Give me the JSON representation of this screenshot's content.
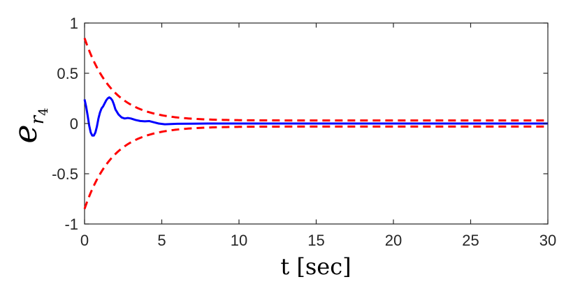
{
  "chart_data": {
    "type": "line",
    "xlabel": "t [sec]",
    "ylabel": {
      "base": "e",
      "sub": "r",
      "subsub": "4"
    },
    "xlim": [
      0,
      30
    ],
    "ylim": [
      -1,
      1
    ],
    "xticks": [
      0,
      5,
      10,
      15,
      20,
      25,
      30
    ],
    "xtick_labels": [
      "0",
      "5",
      "10",
      "15",
      "20",
      "25",
      "30"
    ],
    "yticks": [
      1,
      0.5,
      0,
      -0.5,
      -1
    ],
    "ytick_labels": [
      "1",
      "0.5",
      "0",
      "-0.5",
      "-1"
    ],
    "grid": false,
    "series": [
      {
        "style": "solid",
        "color": "#0000FF",
        "points": [
          [
            0,
            0.24
          ],
          [
            0.1,
            0.17
          ],
          [
            0.2,
            0.08
          ],
          [
            0.3,
            -0.02
          ],
          [
            0.4,
            -0.09
          ],
          [
            0.5,
            -0.12
          ],
          [
            0.6,
            -0.12
          ],
          [
            0.7,
            -0.09
          ],
          [
            0.8,
            -0.03
          ],
          [
            0.9,
            0.05
          ],
          [
            1.0,
            0.11
          ],
          [
            1.1,
            0.15
          ],
          [
            1.2,
            0.17
          ],
          [
            1.3,
            0.2
          ],
          [
            1.4,
            0.23
          ],
          [
            1.5,
            0.25
          ],
          [
            1.6,
            0.26
          ],
          [
            1.7,
            0.25
          ],
          [
            1.8,
            0.23
          ],
          [
            1.9,
            0.19
          ],
          [
            2.0,
            0.14
          ],
          [
            2.2,
            0.09
          ],
          [
            2.4,
            0.06
          ],
          [
            2.6,
            0.05
          ],
          [
            2.8,
            0.055
          ],
          [
            3.0,
            0.05
          ],
          [
            3.3,
            0.035
          ],
          [
            3.6,
            0.025
          ],
          [
            3.9,
            0.022
          ],
          [
            4.2,
            0.024
          ],
          [
            4.5,
            0.012
          ],
          [
            4.8,
            0.0
          ],
          [
            5.2,
            -0.008
          ],
          [
            5.6,
            -0.005
          ],
          [
            6.0,
            -0.003
          ],
          [
            7.0,
            -0.002
          ],
          [
            8.0,
            0.0
          ],
          [
            10.0,
            0.0
          ],
          [
            15.0,
            0.0
          ],
          [
            20.0,
            0.0
          ],
          [
            25.0,
            0.0
          ],
          [
            30.0,
            0.0
          ]
        ]
      },
      {
        "style": "dashed",
        "color": "#FF0000",
        "bound": "upper",
        "a": 0.82,
        "k": 0.55,
        "c": 0.03
      },
      {
        "style": "dashed",
        "color": "#FF0000",
        "bound": "lower",
        "a": 0.82,
        "k": 0.55,
        "c": 0.03
      }
    ]
  }
}
